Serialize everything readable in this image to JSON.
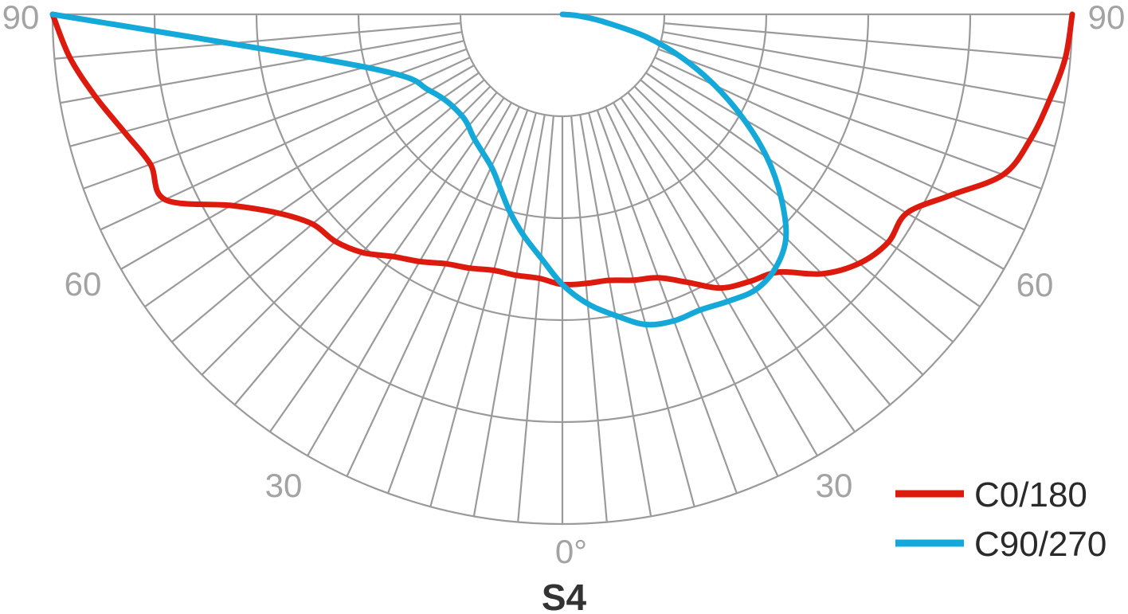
{
  "chart_data": {
    "type": "line",
    "coordinate_system": "polar",
    "title": "S4",
    "angle_ticks_left": [
      "90",
      "60",
      "30"
    ],
    "angle_ticks_right": [
      "90",
      "60",
      "30"
    ],
    "angle_tick_center": "0°",
    "grid": true,
    "legend_placement": "bottom-right",
    "series": [
      {
        "name": "C0/180",
        "color": "#dd1a0e",
        "angle_deg": [
          -90,
          -85,
          -80,
          -75,
          -70,
          -65,
          -60,
          -55,
          -50,
          -45,
          -40,
          -35,
          -30,
          -25,
          -20,
          -15,
          -10,
          -5,
          0,
          5,
          10,
          15,
          20,
          25,
          30,
          35,
          40,
          45,
          50,
          55,
          60,
          65,
          70,
          75,
          80,
          85,
          90
        ],
        "intensity": [
          1.0,
          0.97,
          0.93,
          0.89,
          0.86,
          0.86,
          0.75,
          0.68,
          0.64,
          0.63,
          0.61,
          0.58,
          0.56,
          0.54,
          0.53,
          0.52,
          0.52,
          0.52,
          0.53,
          0.53,
          0.53,
          0.54,
          0.55,
          0.58,
          0.62,
          0.64,
          0.66,
          0.72,
          0.76,
          0.78,
          0.78,
          0.84,
          0.92,
          0.95,
          0.97,
          0.99,
          1.0
        ]
      },
      {
        "name": "C90/270",
        "color": "#14a9d9",
        "angle_deg": [
          -90,
          -75,
          -60,
          -45,
          -35,
          -25,
          -20,
          -15,
          -10,
          -5,
          0,
          5,
          10,
          15,
          20,
          25,
          30,
          35,
          40,
          45,
          50,
          55,
          60,
          65,
          70,
          75,
          80,
          85,
          90
        ],
        "intensity": [
          1.0,
          0.4,
          0.3,
          0.28,
          0.3,
          0.33,
          0.36,
          0.4,
          0.44,
          0.48,
          0.53,
          0.57,
          0.6,
          0.63,
          0.64,
          0.64,
          0.65,
          0.66,
          0.65,
          0.62,
          0.56,
          0.49,
          0.41,
          0.33,
          0.25,
          0.17,
          0.08,
          0.03,
          0.0
        ]
      }
    ]
  }
}
